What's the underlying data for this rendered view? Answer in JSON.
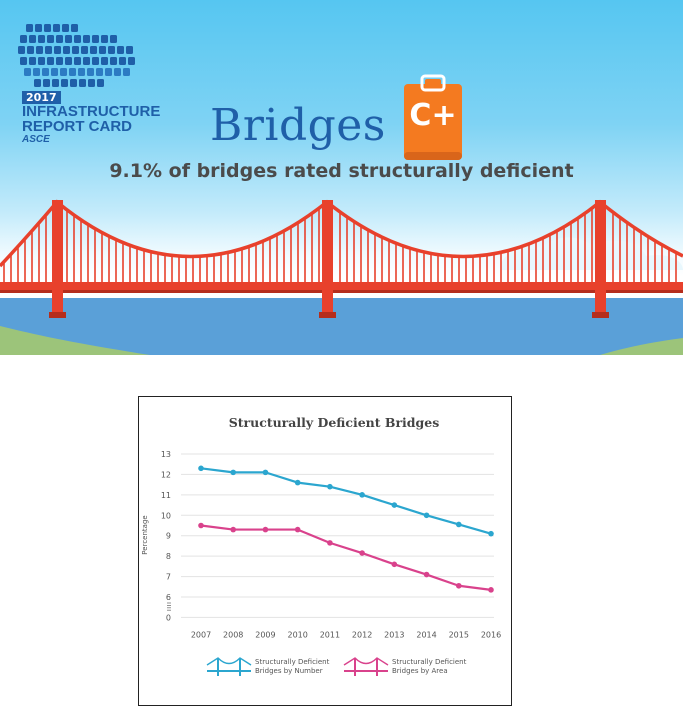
{
  "banner": {
    "logo": {
      "year": "2017",
      "title": "INFRASTRUCTURE",
      "subtitle": "REPORT CARD",
      "org": "ASCE"
    },
    "title": "Bridges",
    "grade": "C+",
    "headline": "9.1% of bridges rated structurally deficient",
    "colors": {
      "sky": "#56c6f1",
      "bridge": "#e8412c",
      "grade_badge": "#f47a20",
      "title": "#1f5fa8",
      "water": "#5aa0d8"
    }
  },
  "chart_data": {
    "type": "line",
    "title": "Structurally Deficient Bridges",
    "ylabel": "Percentage",
    "xlabel": "",
    "x": [
      "2007",
      "2008",
      "2009",
      "2010",
      "2011",
      "2012",
      "2013",
      "2014",
      "2015",
      "2016"
    ],
    "yticks": [
      "0",
      "6",
      "7",
      "8",
      "9",
      "10",
      "11",
      "12",
      "13"
    ],
    "ylim": [
      6,
      13
    ],
    "axis_break": true,
    "grid": true,
    "legend_position": "bottom",
    "series": [
      {
        "name": "Structurally Deficient Bridges by Number",
        "legend_lines": [
          "Structurally Deficient",
          "Bridges by Number"
        ],
        "color": "#2ba6cf",
        "values": [
          12.3,
          12.1,
          12.1,
          11.6,
          11.4,
          11.0,
          10.5,
          10.0,
          9.55,
          9.1
        ]
      },
      {
        "name": "Structurally Deficient Bridges by Area",
        "legend_lines": [
          "Structurally Deficient",
          "Bridges by Area"
        ],
        "color": "#d9428c",
        "values": [
          9.5,
          9.3,
          9.3,
          9.3,
          8.65,
          8.15,
          7.6,
          7.1,
          6.55,
          6.35
        ]
      }
    ]
  }
}
